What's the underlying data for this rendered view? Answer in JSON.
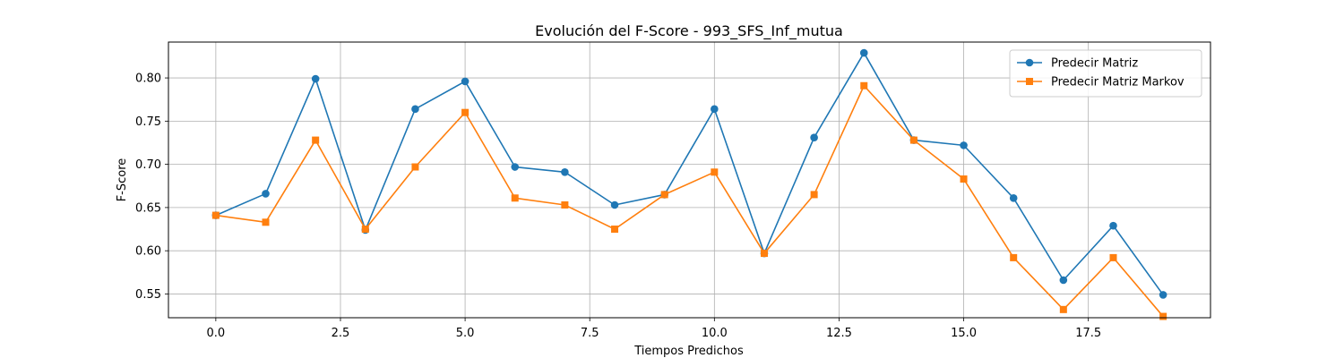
{
  "chart_data": {
    "type": "line",
    "title": "Evolución del F-Score - 993_SFS_Inf_mutua",
    "xlabel": "Tiempos Predichos",
    "ylabel": "F-Score",
    "xlim": [
      -0.95,
      19.95
    ],
    "ylim": [
      0.5225,
      0.8415
    ],
    "x_ticks": [
      0.0,
      2.5,
      5.0,
      7.5,
      10.0,
      12.5,
      15.0,
      17.5
    ],
    "x_tick_labels": [
      "0.0",
      "2.5",
      "5.0",
      "7.5",
      "10.0",
      "12.5",
      "15.0",
      "17.5"
    ],
    "y_ticks": [
      0.55,
      0.6,
      0.65,
      0.7,
      0.75,
      0.8
    ],
    "y_tick_labels": [
      "0.55",
      "0.60",
      "0.65",
      "0.70",
      "0.75",
      "0.80"
    ],
    "grid": true,
    "legend_position": "top-right",
    "x": [
      0,
      1,
      2,
      3,
      4,
      5,
      6,
      7,
      8,
      9,
      10,
      11,
      12,
      13,
      14,
      15,
      16,
      17,
      18,
      19
    ],
    "series": [
      {
        "name": "Predecir Matriz",
        "color": "#1f77b4",
        "marker": "circle",
        "values": [
          0.641,
          0.666,
          0.799,
          0.624,
          0.764,
          0.796,
          0.697,
          0.691,
          0.653,
          0.665,
          0.764,
          0.597,
          0.731,
          0.829,
          0.728,
          0.722,
          0.661,
          0.566,
          0.629,
          0.549
        ]
      },
      {
        "name": "Predecir Matriz Markov",
        "color": "#ff7f0e",
        "marker": "square",
        "values": [
          0.641,
          0.633,
          0.728,
          0.625,
          0.697,
          0.76,
          0.661,
          0.653,
          0.625,
          0.665,
          0.691,
          0.597,
          0.665,
          0.791,
          0.728,
          0.683,
          0.592,
          0.532,
          0.592,
          0.524
        ]
      }
    ]
  }
}
